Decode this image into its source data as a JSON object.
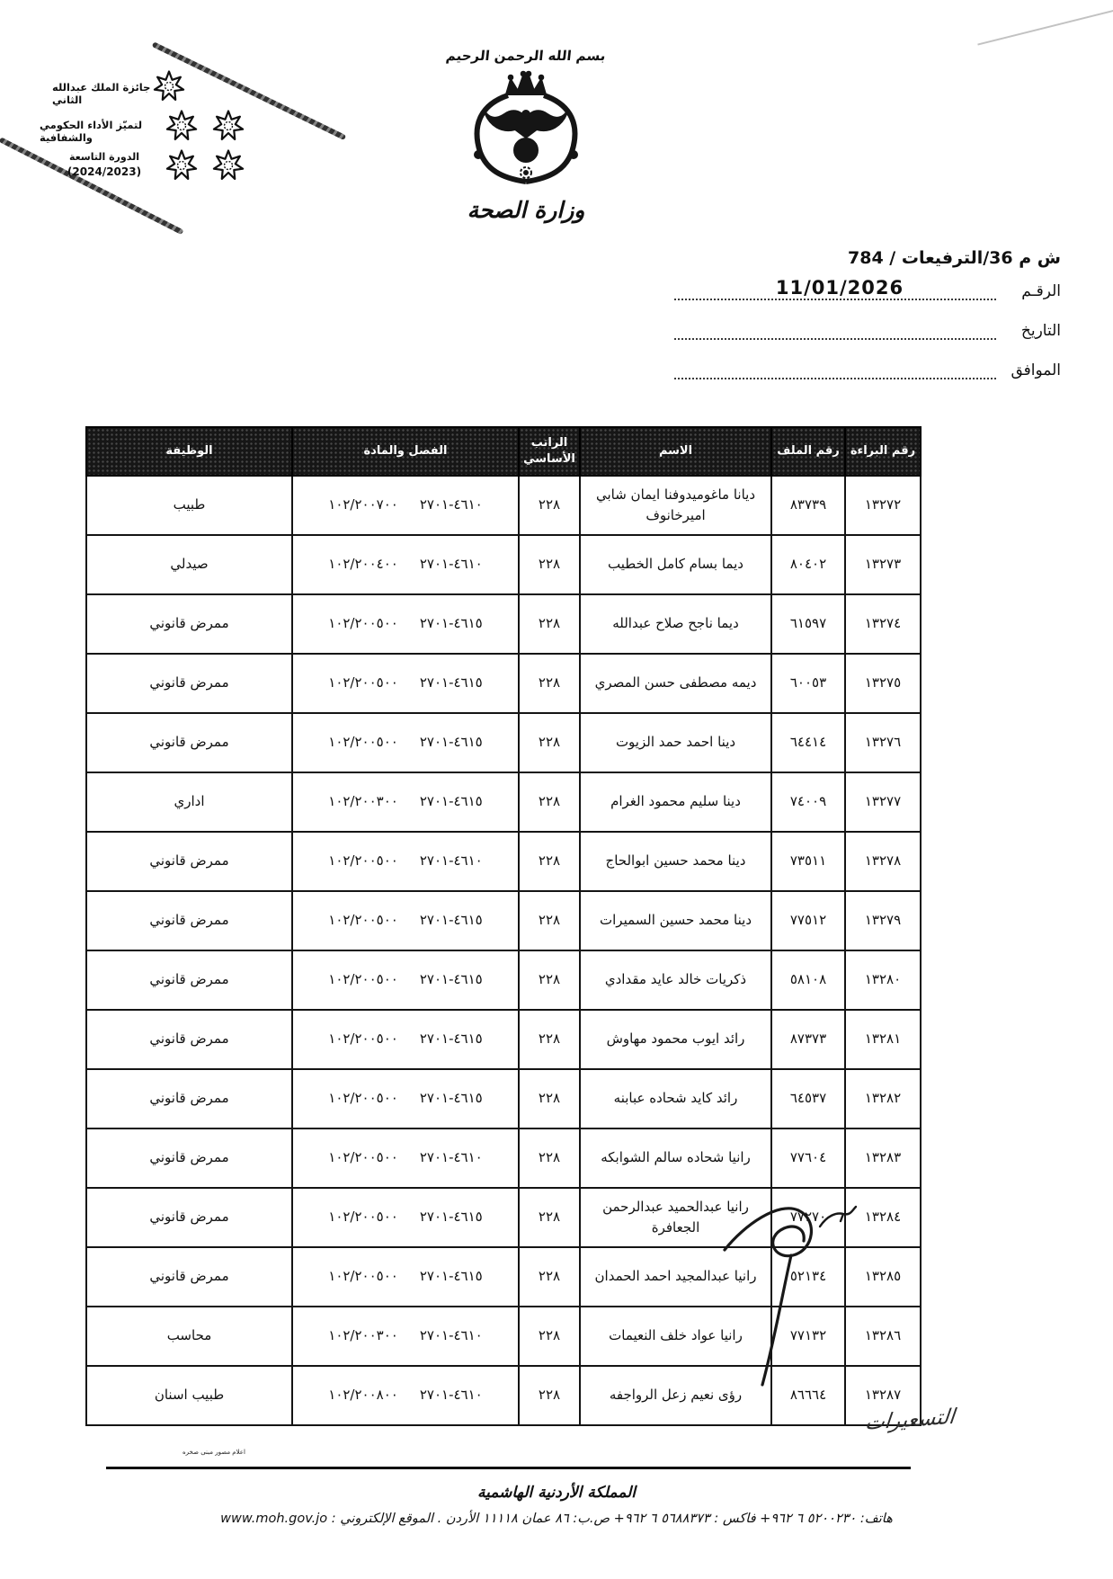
{
  "award_stamp": {
    "title": "جائزة الملك عبدالله الثاني",
    "subtitle": "لتميّز الأداء الحكومي والشفافية",
    "session": "الدورة التاسعة",
    "years": "(2024/2023)"
  },
  "masthead": {
    "bismillah": "بسم الله الرحمن الرحيم",
    "ministry_name": "وزارة الصحة"
  },
  "reference": {
    "number": "ش م 36/الترفيعات / 784",
    "date_value": "11/01/2026",
    "labels": {
      "number": "الرقـم",
      "date": "التاريخ",
      "approved": "الموافق"
    }
  },
  "table": {
    "column_headers": [
      "رقم البراءة",
      "رقم الملف",
      "الاسم",
      "الراتب الأساسي",
      "الفصل والمادة",
      "الوظيفة"
    ],
    "rows": [
      {
        "decree_no": "١٣٢٧٢",
        "file_no": "٨٣٧٣٩",
        "name": "ديانا ماغوميدوفنا ايمان شابي اميرخانوف",
        "basic_salary": "٢٢٨",
        "article_code": "١٠٢/٢٠٠٧٠٠",
        "chapter_code": "٤٦١٠-٢٧٠١",
        "job_title": "طبيب"
      },
      {
        "decree_no": "١٣٢٧٣",
        "file_no": "٨٠٤٠٢",
        "name": "ديما بسام كامل الخطيب",
        "basic_salary": "٢٢٨",
        "article_code": "١٠٢/٢٠٠٤٠٠",
        "chapter_code": "٤٦١٠-٢٧٠١",
        "job_title": "صيدلي"
      },
      {
        "decree_no": "١٣٢٧٤",
        "file_no": "٦١٥٩٧",
        "name": "ديما ناجح صلاح عبدالله",
        "basic_salary": "٢٢٨",
        "article_code": "١٠٢/٢٠٠٥٠٠",
        "chapter_code": "٤٦١٥-٢٧٠١",
        "job_title": "ممرض قانوني"
      },
      {
        "decree_no": "١٣٢٧٥",
        "file_no": "٦٠٠٥٣",
        "name": "ديمه مصطفى حسن المصري",
        "basic_salary": "٢٢٨",
        "article_code": "١٠٢/٢٠٠٥٠٠",
        "chapter_code": "٤٦١٥-٢٧٠١",
        "job_title": "ممرض قانوني"
      },
      {
        "decree_no": "١٣٢٧٦",
        "file_no": "٦٤٤١٤",
        "name": "دينا احمد حمد الزيوت",
        "basic_salary": "٢٢٨",
        "article_code": "١٠٢/٢٠٠٥٠٠",
        "chapter_code": "٤٦١٥-٢٧٠١",
        "job_title": "ممرض قانوني"
      },
      {
        "decree_no": "١٣٢٧٧",
        "file_no": "٧٤٠٠٩",
        "name": "دينا سليم محمود الغرام",
        "basic_salary": "٢٢٨",
        "article_code": "١٠٢/٢٠٠٣٠٠",
        "chapter_code": "٤٦١٥-٢٧٠١",
        "job_title": "اداري"
      },
      {
        "decree_no": "١٣٢٧٨",
        "file_no": "٧٣٥١١",
        "name": "دينا محمد حسين ابوالحاج",
        "basic_salary": "٢٢٨",
        "article_code": "١٠٢/٢٠٠٥٠٠",
        "chapter_code": "٤٦١٠-٢٧٠١",
        "job_title": "ممرض قانوني"
      },
      {
        "decree_no": "١٣٢٧٩",
        "file_no": "٧٧٥١٢",
        "name": "دينا محمد حسين السميرات",
        "basic_salary": "٢٢٨",
        "article_code": "١٠٢/٢٠٠٥٠٠",
        "chapter_code": "٤٦١٥-٢٧٠١",
        "job_title": "ممرض قانوني"
      },
      {
        "decree_no": "١٣٢٨٠",
        "file_no": "٥٨١٠٨",
        "name": "ذكريات خالد عايد مقدادي",
        "basic_salary": "٢٢٨",
        "article_code": "١٠٢/٢٠٠٥٠٠",
        "chapter_code": "٤٦١٥-٢٧٠١",
        "job_title": "ممرض قانوني"
      },
      {
        "decree_no": "١٣٢٨١",
        "file_no": "٨٧٣٧٣",
        "name": "رائد ايوب محمود مهاوش",
        "basic_salary": "٢٢٨",
        "article_code": "١٠٢/٢٠٠٥٠٠",
        "chapter_code": "٤٦١٥-٢٧٠١",
        "job_title": "ممرض قانوني"
      },
      {
        "decree_no": "١٣٢٨٢",
        "file_no": "٦٤٥٣٧",
        "name": "رائد كايد شحاده عبابنه",
        "basic_salary": "٢٢٨",
        "article_code": "١٠٢/٢٠٠٥٠٠",
        "chapter_code": "٤٦١٥-٢٧٠١",
        "job_title": "ممرض قانوني"
      },
      {
        "decree_no": "١٣٢٨٣",
        "file_no": "٧٧٦٠٤",
        "name": "رانيا شحاده سالم الشوابكه",
        "basic_salary": "٢٢٨",
        "article_code": "١٠٢/٢٠٠٥٠٠",
        "chapter_code": "٤٦١٠-٢٧٠١",
        "job_title": "ممرض قانوني"
      },
      {
        "decree_no": "١٣٢٨٤",
        "file_no": "٧٧٢٧٠",
        "name": "رانيا عبدالحميد عبدالرحمن الجعافرة",
        "basic_salary": "٢٢٨",
        "article_code": "١٠٢/٢٠٠٥٠٠",
        "chapter_code": "٤٦١٥-٢٧٠١",
        "job_title": "ممرض قانوني"
      },
      {
        "decree_no": "١٣٢٨٥",
        "file_no": "٥٢١٣٤",
        "name": "رانيا عبدالمجيد احمد الحمدان",
        "basic_salary": "٢٢٨",
        "article_code": "١٠٢/٢٠٠٥٠٠",
        "chapter_code": "٤٦١٥-٢٧٠١",
        "job_title": "ممرض قانوني"
      },
      {
        "decree_no": "١٣٢٨٦",
        "file_no": "٧٧١٣٢",
        "name": "رانيا عواد خلف النعيمات",
        "basic_salary": "٢٢٨",
        "article_code": "١٠٢/٢٠٠٣٠٠",
        "chapter_code": "٤٦١٠-٢٧٠١",
        "job_title": "محاسب"
      },
      {
        "decree_no": "١٣٢٨٧",
        "file_no": "٨٦٦٦٤",
        "name": "رؤى نعيم زعل الرواجفه",
        "basic_salary": "٢٢٨",
        "article_code": "١٠٢/٢٠٠٨٠٠",
        "chapter_code": "٤٦١٠-٢٧٠١",
        "job_title": "طبيب اسنان"
      }
    ]
  },
  "annotations": {
    "handwritten_note": "التسعيرات",
    "tiny_print": "اعلام مصور مبنى صخره"
  },
  "footer": {
    "kingdom": "المملكة الأردنية الهاشمية",
    "contact": "هاتف: ٥٢٠٠٢٣٠ ٦ ٩٦٢+ فاكس : ٥٦٨٨٣٧٣ ٦ ٩٦٢+ ص.ب: ٨٦ عمان ١١١١٨ الأردن . الموقع الإلكتروني : www.moh.gov.jo"
  }
}
